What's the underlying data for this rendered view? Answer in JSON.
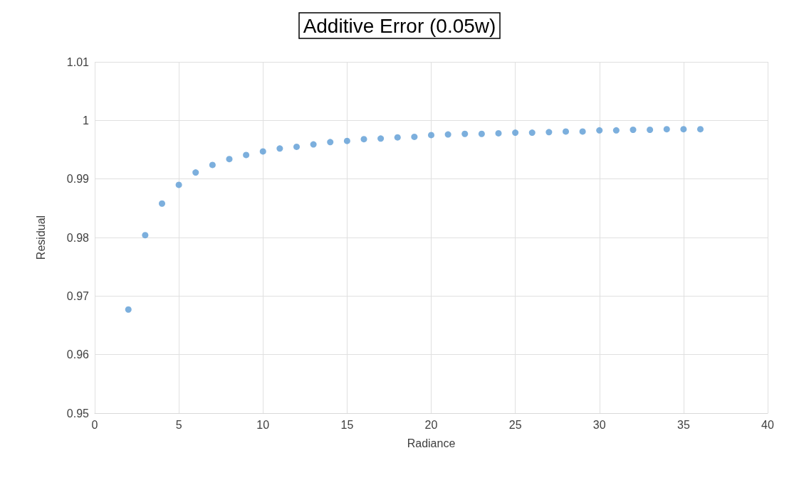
{
  "chart_data": {
    "type": "scatter",
    "title": "Additive Error (0.05w)",
    "xlabel": "Radiance",
    "ylabel": "Residual",
    "x": [
      2,
      3,
      4,
      5,
      6,
      7,
      8,
      9,
      10,
      11,
      12,
      13,
      14,
      15,
      16,
      17,
      18,
      19,
      20,
      21,
      22,
      23,
      24,
      25,
      26,
      27,
      28,
      29,
      30,
      31,
      32,
      33,
      34,
      35,
      36
    ],
    "series": [
      {
        "color": "#5b9bd5",
        "values": [
          0.9677,
          0.9804,
          0.9858,
          0.989,
          0.9911,
          0.9924,
          0.9934,
          0.9941,
          0.9947,
          0.9952,
          0.9955,
          0.9959,
          0.9963,
          0.9965,
          0.9968,
          0.9969,
          0.9971,
          0.9972,
          0.9975,
          0.9976,
          0.9977,
          0.9977,
          0.9978,
          0.9979,
          0.9979,
          0.998,
          0.9981,
          0.9981,
          0.9983,
          0.9983,
          0.9984,
          0.9984,
          0.9985,
          0.9985,
          0.9985
        ]
      }
    ],
    "xlim": [
      0,
      40
    ],
    "xticks": [
      0,
      5,
      10,
      15,
      20,
      25,
      30,
      35,
      40
    ],
    "ylim": [
      0.95,
      1.01
    ],
    "yticks": [
      0.95,
      0.96,
      0.97,
      0.98,
      0.99,
      1,
      1.01
    ],
    "grid": true,
    "marker": "circle"
  }
}
